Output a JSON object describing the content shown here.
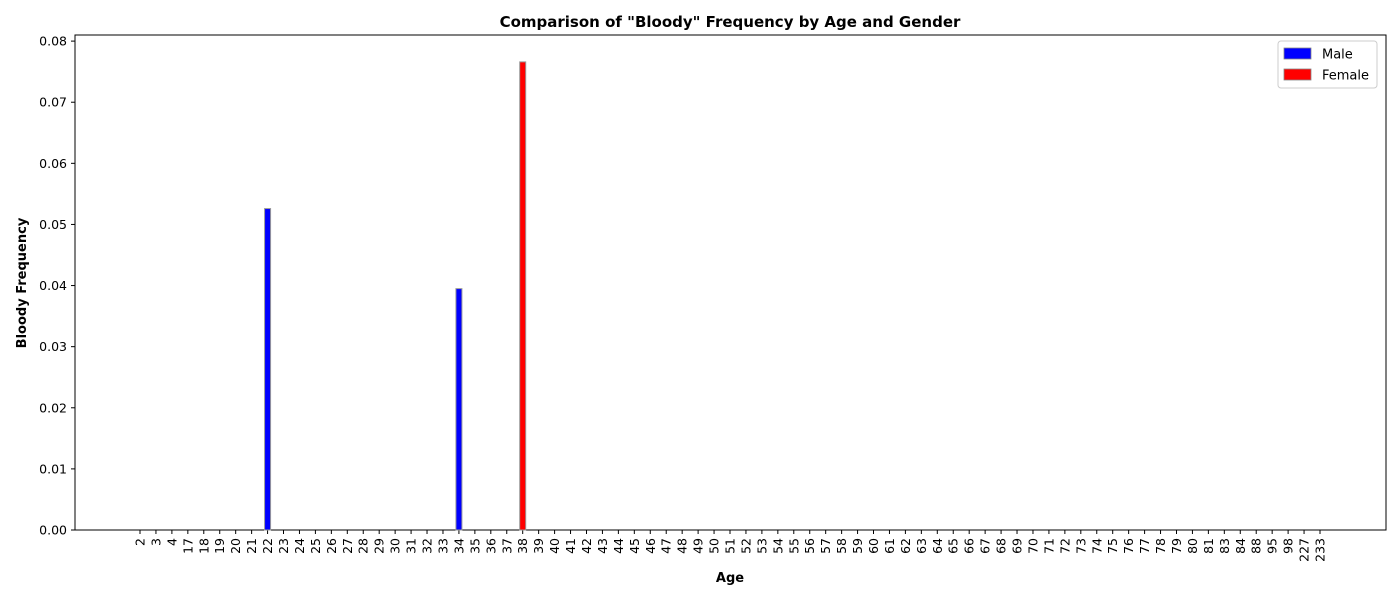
{
  "chart_data": {
    "type": "bar",
    "title": "Comparison of \"Bloody\" Frequency by Age and Gender",
    "xlabel": "Age",
    "ylabel": "Bloody Frequency",
    "ylim": [
      0,
      0.081
    ],
    "yticks": [
      "0.00",
      "0.01",
      "0.02",
      "0.03",
      "0.04",
      "0.05",
      "0.06",
      "0.07",
      "0.08"
    ],
    "categories": [
      "2",
      "3",
      "4",
      "17",
      "18",
      "19",
      "20",
      "21",
      "22",
      "23",
      "24",
      "25",
      "26",
      "27",
      "28",
      "29",
      "30",
      "31",
      "32",
      "33",
      "34",
      "35",
      "36",
      "37",
      "38",
      "39",
      "40",
      "41",
      "42",
      "43",
      "44",
      "45",
      "46",
      "47",
      "48",
      "49",
      "50",
      "51",
      "52",
      "53",
      "54",
      "55",
      "56",
      "57",
      "58",
      "59",
      "60",
      "61",
      "62",
      "63",
      "64",
      "65",
      "66",
      "67",
      "68",
      "69",
      "70",
      "71",
      "72",
      "73",
      "74",
      "75",
      "76",
      "77",
      "78",
      "79",
      "80",
      "81",
      "83",
      "84",
      "88",
      "95",
      "98",
      "227",
      "233"
    ],
    "series": [
      {
        "name": "Male",
        "color": "#0000ff",
        "values": [
          0,
          0,
          0,
          0,
          0,
          0,
          0,
          0,
          0.0526,
          0,
          0,
          0,
          0,
          0,
          0,
          0,
          0,
          0,
          0,
          0,
          0.0395,
          0,
          0,
          0,
          0,
          0,
          0,
          0,
          0,
          0,
          0,
          0,
          0,
          0,
          0,
          0,
          0,
          0,
          0,
          0,
          0,
          0,
          0,
          0,
          0,
          0,
          0,
          0,
          0,
          0,
          0,
          0,
          0,
          0,
          0,
          0,
          0,
          0,
          0,
          0,
          0,
          0,
          0,
          0,
          0,
          0,
          0,
          0,
          0,
          0,
          0,
          0,
          0,
          0,
          0
        ]
      },
      {
        "name": "Female",
        "color": "#ff0000",
        "values": [
          0,
          0,
          0,
          0,
          0,
          0,
          0,
          0,
          0,
          0,
          0,
          0,
          0,
          0,
          0,
          0,
          0,
          0,
          0,
          0,
          0,
          0,
          0,
          0,
          0.0766,
          0,
          0,
          0,
          0,
          0,
          0,
          0,
          0,
          0,
          0,
          0,
          0,
          0,
          0,
          0,
          0,
          0,
          0,
          0,
          0,
          0,
          0,
          0,
          0,
          0,
          0,
          0,
          0,
          0,
          0,
          0,
          0,
          0,
          0,
          0,
          0,
          0,
          0,
          0,
          0,
          0,
          0,
          0,
          0,
          0,
          0,
          0,
          0,
          0,
          0
        ]
      }
    ],
    "grid": false,
    "legend_position": "top-right"
  }
}
